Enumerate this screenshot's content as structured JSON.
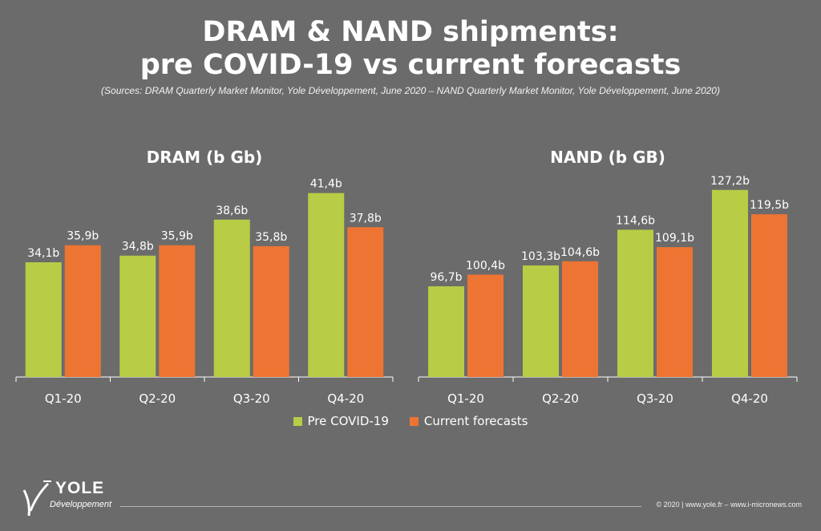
{
  "header": {
    "title_line1": "DRAM & NAND shipments:",
    "title_line2": "pre COVID-19 vs current forecasts",
    "subtitle": "(Sources: DRAM Quarterly Market Monitor, Yole Développement, June 2020 – NAND Quarterly Market Monitor, Yole Développement, June 2020)"
  },
  "legend": {
    "pre_label": "Pre COVID-19",
    "current_label": "Current forecasts"
  },
  "colors": {
    "background": "#6b6b6b",
    "pre": "#b8cc45",
    "current": "#ee7433",
    "axis": "#ffffff"
  },
  "chart_data": [
    {
      "type": "bar",
      "title": "DRAM (b Gb)",
      "categories": [
        "Q1-20",
        "Q2-20",
        "Q3-20",
        "Q4-20"
      ],
      "series": [
        {
          "name": "Pre COVID-19",
          "values": [
            34.1,
            34.8,
            38.6,
            41.4
          ],
          "labels": [
            "34,1b",
            "34,8b",
            "38,6b",
            "41,4b"
          ]
        },
        {
          "name": "Current forecasts",
          "values": [
            35.9,
            35.9,
            35.8,
            37.8
          ],
          "labels": [
            "35,9b",
            "35,9b",
            "35,8b",
            "37,8b"
          ]
        }
      ],
      "ylim": [
        22,
        44
      ],
      "grid": false,
      "legend": "bottom-center"
    },
    {
      "type": "bar",
      "title": "NAND (b GB)",
      "categories": [
        "Q1-20",
        "Q2-20",
        "Q3-20",
        "Q4-20"
      ],
      "series": [
        {
          "name": "Pre COVID-19",
          "values": [
            96.7,
            103.3,
            114.6,
            127.2
          ],
          "labels": [
            "96,7b",
            "103,3b",
            "114,6b",
            "127,2b"
          ]
        },
        {
          "name": "Current forecasts",
          "values": [
            100.4,
            104.6,
            109.1,
            119.5
          ],
          "labels": [
            "100,4b",
            "104,6b",
            "109,1b",
            "119,5b"
          ]
        }
      ],
      "ylim": [
        68,
        134
      ],
      "grid": false,
      "legend": "bottom-center"
    }
  ],
  "footer": {
    "logo_name": "YOLE",
    "logo_sub": "Développement",
    "copyright": "© 2020 | www.yole.fr – www.i-micronews.com"
  }
}
